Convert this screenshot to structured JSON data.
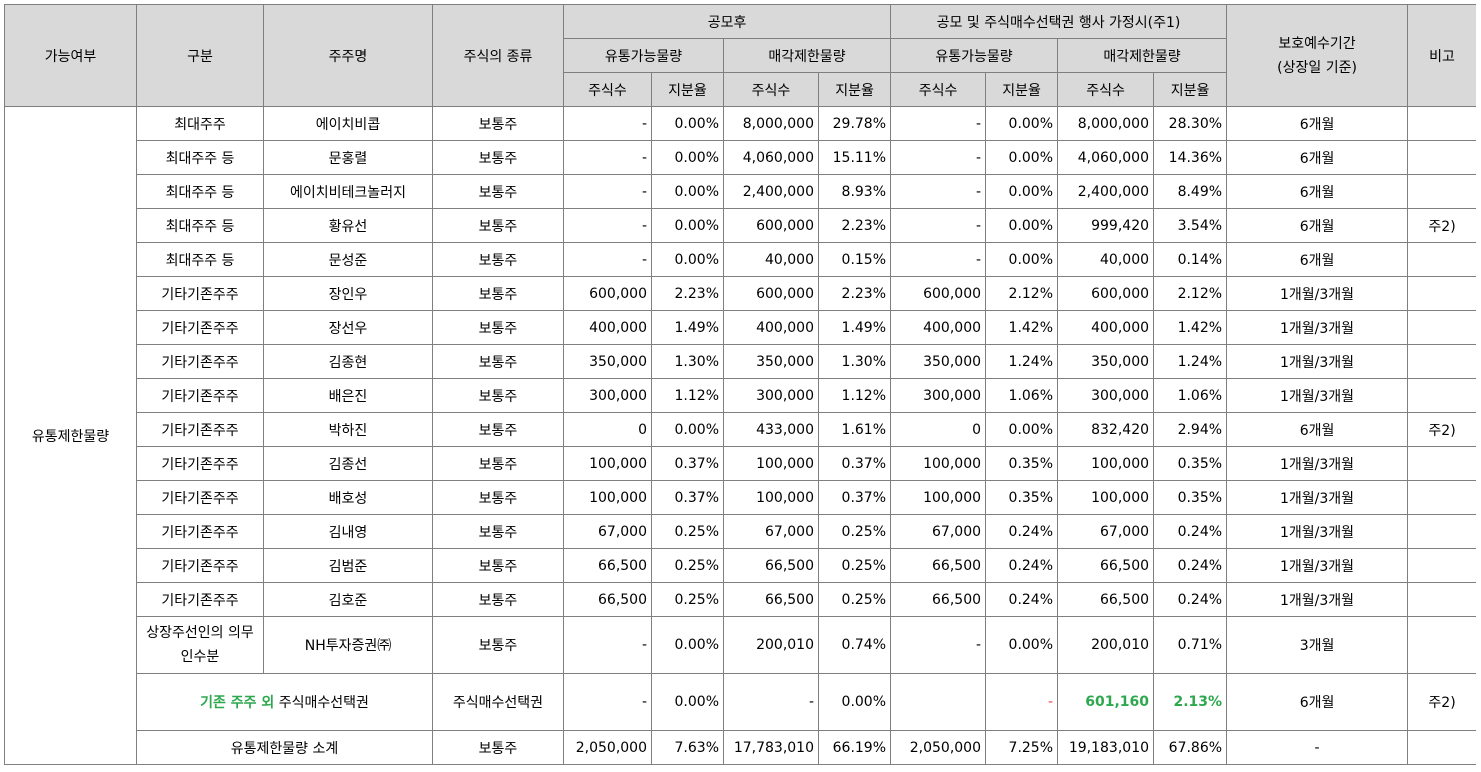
{
  "header": {
    "possible": "가능여부",
    "category": "구분",
    "holder": "주주명",
    "stock_type": "주식의 종류",
    "after_ipo": "공모후",
    "after_option": "공모 및 주식매수선택권 행사 가정시(주1)",
    "tradable": "유통가능물량",
    "restricted": "매각제한물량",
    "shares": "주식수",
    "ratio": "지분율",
    "lockup_line1": "보호예수기간",
    "lockup_line2": "(상장일 기준)",
    "remark": "비고"
  },
  "section_label": "유통제한물량",
  "rows": [
    {
      "category": "최대주주",
      "holder": "에이치비콥",
      "type": "보통주",
      "a_t_s": "-",
      "a_t_r": "0.00%",
      "a_r_s": "8,000,000",
      "a_r_r": "29.78%",
      "b_t_s": "-",
      "b_t_r": "0.00%",
      "b_r_s": "8,000,000",
      "b_r_r": "28.30%",
      "lockup": "6개월",
      "remark": ""
    },
    {
      "category": "최대주주 등",
      "holder": "문홍렬",
      "type": "보통주",
      "a_t_s": "-",
      "a_t_r": "0.00%",
      "a_r_s": "4,060,000",
      "a_r_r": "15.11%",
      "b_t_s": "-",
      "b_t_r": "0.00%",
      "b_r_s": "4,060,000",
      "b_r_r": "14.36%",
      "lockup": "6개월",
      "remark": ""
    },
    {
      "category": "최대주주 등",
      "holder": "에이치비테크놀러지",
      "type": "보통주",
      "a_t_s": "-",
      "a_t_r": "0.00%",
      "a_r_s": "2,400,000",
      "a_r_r": "8.93%",
      "b_t_s": "-",
      "b_t_r": "0.00%",
      "b_r_s": "2,400,000",
      "b_r_r": "8.49%",
      "lockup": "6개월",
      "remark": ""
    },
    {
      "category": "최대주주 등",
      "holder": "황유선",
      "type": "보통주",
      "a_t_s": "-",
      "a_t_r": "0.00%",
      "a_r_s": "600,000",
      "a_r_r": "2.23%",
      "b_t_s": "-",
      "b_t_r": "0.00%",
      "b_r_s": "999,420",
      "b_r_r": "3.54%",
      "lockup": "6개월",
      "remark": "주2)"
    },
    {
      "category": "최대주주 등",
      "holder": "문성준",
      "type": "보통주",
      "a_t_s": "-",
      "a_t_r": "0.00%",
      "a_r_s": "40,000",
      "a_r_r": "0.15%",
      "b_t_s": "-",
      "b_t_r": "0.00%",
      "b_r_s": "40,000",
      "b_r_r": "0.14%",
      "lockup": "6개월",
      "remark": ""
    },
    {
      "category": "기타기존주주",
      "holder": "장인우",
      "type": "보통주",
      "a_t_s": "600,000",
      "a_t_r": "2.23%",
      "a_r_s": "600,000",
      "a_r_r": "2.23%",
      "b_t_s": "600,000",
      "b_t_r": "2.12%",
      "b_r_s": "600,000",
      "b_r_r": "2.12%",
      "lockup": "1개월/3개월",
      "remark": ""
    },
    {
      "category": "기타기존주주",
      "holder": "장선우",
      "type": "보통주",
      "a_t_s": "400,000",
      "a_t_r": "1.49%",
      "a_r_s": "400,000",
      "a_r_r": "1.49%",
      "b_t_s": "400,000",
      "b_t_r": "1.42%",
      "b_r_s": "400,000",
      "b_r_r": "1.42%",
      "lockup": "1개월/3개월",
      "remark": ""
    },
    {
      "category": "기타기존주주",
      "holder": "김종현",
      "type": "보통주",
      "a_t_s": "350,000",
      "a_t_r": "1.30%",
      "a_r_s": "350,000",
      "a_r_r": "1.30%",
      "b_t_s": "350,000",
      "b_t_r": "1.24%",
      "b_r_s": "350,000",
      "b_r_r": "1.24%",
      "lockup": "1개월/3개월",
      "remark": ""
    },
    {
      "category": "기타기존주주",
      "holder": "배은진",
      "type": "보통주",
      "a_t_s": "300,000",
      "a_t_r": "1.12%",
      "a_r_s": "300,000",
      "a_r_r": "1.12%",
      "b_t_s": "300,000",
      "b_t_r": "1.06%",
      "b_r_s": "300,000",
      "b_r_r": "1.06%",
      "lockup": "1개월/3개월",
      "remark": ""
    },
    {
      "category": "기타기존주주",
      "holder": "박하진",
      "type": "보통주",
      "a_t_s": "0",
      "a_t_r": "0.00%",
      "a_r_s": "433,000",
      "a_r_r": "1.61%",
      "b_t_s": "0",
      "b_t_r": "0.00%",
      "b_r_s": "832,420",
      "b_r_r": "2.94%",
      "lockup": "6개월",
      "remark": "주2)"
    },
    {
      "category": "기타기존주주",
      "holder": "김종선",
      "type": "보통주",
      "a_t_s": "100,000",
      "a_t_r": "0.37%",
      "a_r_s": "100,000",
      "a_r_r": "0.37%",
      "b_t_s": "100,000",
      "b_t_r": "0.35%",
      "b_r_s": "100,000",
      "b_r_r": "0.35%",
      "lockup": "1개월/3개월",
      "remark": ""
    },
    {
      "category": "기타기존주주",
      "holder": "배호성",
      "type": "보통주",
      "a_t_s": "100,000",
      "a_t_r": "0.37%",
      "a_r_s": "100,000",
      "a_r_r": "0.37%",
      "b_t_s": "100,000",
      "b_t_r": "0.35%",
      "b_r_s": "100,000",
      "b_r_r": "0.35%",
      "lockup": "1개월/3개월",
      "remark": ""
    },
    {
      "category": "기타기존주주",
      "holder": "김내영",
      "type": "보통주",
      "a_t_s": "67,000",
      "a_t_r": "0.25%",
      "a_r_s": "67,000",
      "a_r_r": "0.25%",
      "b_t_s": "67,000",
      "b_t_r": "0.24%",
      "b_r_s": "67,000",
      "b_r_r": "0.24%",
      "lockup": "1개월/3개월",
      "remark": ""
    },
    {
      "category": "기타기존주주",
      "holder": "김범준",
      "type": "보통주",
      "a_t_s": "66,500",
      "a_t_r": "0.25%",
      "a_r_s": "66,500",
      "a_r_r": "0.25%",
      "b_t_s": "66,500",
      "b_t_r": "0.24%",
      "b_r_s": "66,500",
      "b_r_r": "0.24%",
      "lockup": "1개월/3개월",
      "remark": ""
    },
    {
      "category": "기타기존주주",
      "holder": "김호준",
      "type": "보통주",
      "a_t_s": "66,500",
      "a_t_r": "0.25%",
      "a_r_s": "66,500",
      "a_r_r": "0.25%",
      "b_t_s": "66,500",
      "b_t_r": "0.24%",
      "b_r_s": "66,500",
      "b_r_r": "0.24%",
      "lockup": "1개월/3개월",
      "remark": ""
    },
    {
      "category": "상장주선인의 의무인수분",
      "holder": "NH투자증권㈜",
      "type": "보통주",
      "a_t_s": "-",
      "a_t_r": "0.00%",
      "a_r_s": "200,010",
      "a_r_r": "0.74%",
      "b_t_s": "-",
      "b_t_r": "0.00%",
      "b_r_s": "200,010",
      "b_r_r": "0.71%",
      "lockup": "3개월",
      "remark": ""
    }
  ],
  "option_row": {
    "label_green": "기존 주주 외",
    "label_rest": " 주식매수선택권",
    "type": "주식매수선택권",
    "a_t_s": "-",
    "a_t_r": "0.00%",
    "a_r_s": "-",
    "a_r_r": "0.00%",
    "b_t_s": "",
    "b_t_r": "-",
    "b_r_s": "601,160",
    "b_r_r": "2.13%",
    "lockup": "6개월",
    "remark": "주2)"
  },
  "subtotal_row": {
    "label": "유통제한물량 소계",
    "type": "보통주",
    "a_t_s": "2,050,000",
    "a_t_r": "7.63%",
    "a_r_s": "17,783,010",
    "a_r_r": "66.19%",
    "b_t_s": "2,050,000",
    "b_t_r": "7.25%",
    "b_r_s": "19,183,010",
    "b_r_r": "67.86%",
    "lockup": "-",
    "remark": ""
  },
  "colors": {
    "header_bg": "#d9d9d9",
    "border": "#7f7f7f",
    "highlight_green": "#2ea84e",
    "highlight_red": "#e8404a"
  }
}
